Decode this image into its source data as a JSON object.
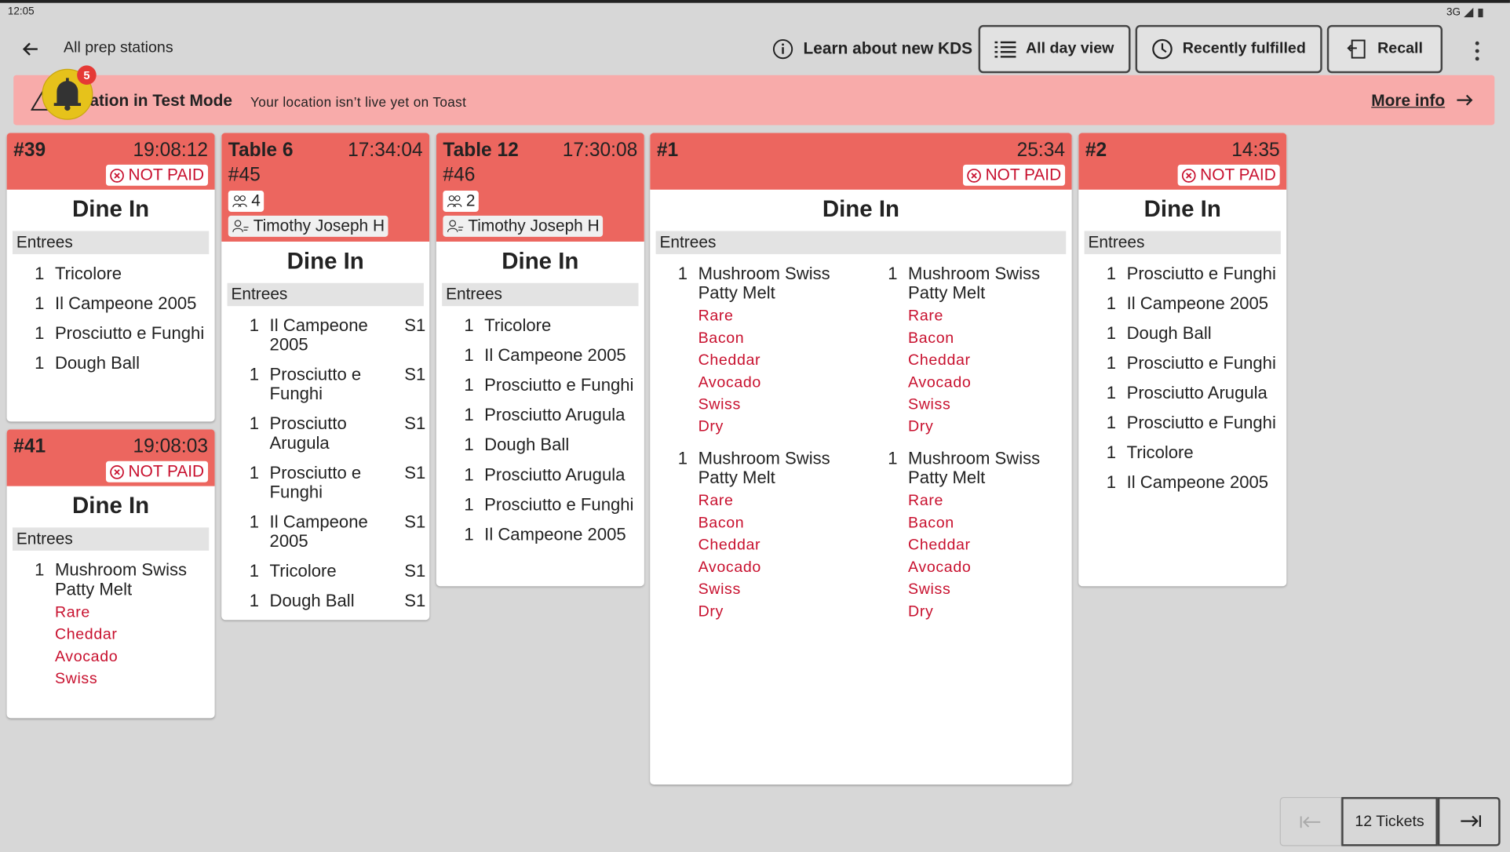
{
  "status_bar": {
    "time": "12:05",
    "network": "3G"
  },
  "header": {
    "title": "All prep stations",
    "buttons": [
      "Learn about new KDS",
      "All day view",
      "Recently fulfilled",
      "Recall"
    ]
  },
  "notification_count": "5",
  "banner": {
    "title": "Location in Test Mode",
    "message": "Your location isn’t live yet on Toast",
    "link": "More info"
  },
  "tickets": [
    {
      "name": "#39",
      "time": "19:08:12",
      "payment": "NOT PAID",
      "order_type": "Dine In",
      "section": "Entrees",
      "items": [
        {
          "qty": 1,
          "name": "Tricolore"
        },
        {
          "qty": 1,
          "name": "Il Campeone 2005"
        },
        {
          "qty": 1,
          "name": "Prosciutto e Funghi"
        },
        {
          "qty": 1,
          "name": "Dough Ball"
        }
      ]
    },
    {
      "name": "#41",
      "time": "19:08:03",
      "payment": "NOT PAID",
      "order_type": "Dine In",
      "section": "Entrees",
      "items": [
        {
          "qty": 1,
          "name": "Mushroom Swiss Patty Melt",
          "modifiers": [
            "Rare",
            "Cheddar",
            "Avocado",
            "Swiss"
          ]
        }
      ]
    },
    {
      "name": "Table 6",
      "time": "17:34:04",
      "number": "#45",
      "guests": "4",
      "server": "Timothy Joseph H",
      "order_type": "Dine In",
      "section": "Entrees",
      "items": [
        {
          "qty": 1,
          "name": "Il Campeone 2005",
          "seat": "S1"
        },
        {
          "qty": 1,
          "name": "Prosciutto e Funghi",
          "seat": "S1"
        },
        {
          "qty": 1,
          "name": "Prosciutto Arugula",
          "seat": "S1"
        },
        {
          "qty": 1,
          "name": "Prosciutto e Funghi",
          "seat": "S1"
        },
        {
          "qty": 1,
          "name": "Il Campeone 2005",
          "seat": "S1"
        },
        {
          "qty": 1,
          "name": "Tricolore",
          "seat": "S1"
        },
        {
          "qty": 1,
          "name": "Dough Ball",
          "seat": "S1"
        }
      ]
    },
    {
      "name": "Table 12",
      "time": "17:30:08",
      "number": "#46",
      "guests": "2",
      "server": "Timothy Joseph H",
      "order_type": "Dine In",
      "section": "Entrees",
      "items": [
        {
          "qty": 1,
          "name": "Tricolore"
        },
        {
          "qty": 1,
          "name": "Il Campeone 2005"
        },
        {
          "qty": 1,
          "name": "Prosciutto e Funghi"
        },
        {
          "qty": 1,
          "name": "Prosciutto Arugula"
        },
        {
          "qty": 1,
          "name": "Dough Ball"
        },
        {
          "qty": 1,
          "name": "Prosciutto Arugula"
        },
        {
          "qty": 1,
          "name": "Prosciutto e Funghi"
        },
        {
          "qty": 1,
          "name": "Il Campeone 2005"
        }
      ]
    },
    {
      "name": "#1",
      "time": "25:34",
      "payment": "NOT PAID",
      "order_type": "Dine In",
      "section": "Entrees",
      "items": [
        {
          "qty": 1,
          "name": "Mushroom Swiss Patty Melt",
          "modifiers": [
            "Rare",
            "Bacon",
            "Cheddar",
            "Avocado",
            "Swiss",
            "Dry"
          ]
        },
        {
          "qty": 1,
          "name": "Mushroom Swiss Patty Melt",
          "modifiers": [
            "Rare",
            "Bacon",
            "Cheddar",
            "Avocado",
            "Swiss",
            "Dry"
          ]
        },
        {
          "qty": 1,
          "name": "Mushroom Swiss Patty Melt",
          "modifiers": [
            "Rare",
            "Bacon",
            "Cheddar",
            "Avocado",
            "Swiss",
            "Dry"
          ]
        },
        {
          "qty": 1,
          "name": "Mushroom Swiss Patty Melt",
          "modifiers": [
            "Rare",
            "Bacon",
            "Cheddar",
            "Avocado",
            "Swiss",
            "Dry"
          ]
        }
      ]
    },
    {
      "name": "#2",
      "time": "14:35",
      "payment": "NOT PAID",
      "order_type": "Dine In",
      "section": "Entrees",
      "items": [
        {
          "qty": 1,
          "name": "Prosciutto e Funghi"
        },
        {
          "qty": 1,
          "name": "Il Campeone 2005"
        },
        {
          "qty": 1,
          "name": "Dough Ball"
        },
        {
          "qty": 1,
          "name": "Prosciutto e Funghi"
        },
        {
          "qty": 1,
          "name": "Prosciutto Arugula"
        },
        {
          "qty": 1,
          "name": "Prosciutto e Funghi"
        },
        {
          "qty": 1,
          "name": "Tricolore"
        },
        {
          "qty": 1,
          "name": "Il Campeone 2005"
        }
      ]
    }
  ],
  "pagination": {
    "label": "12 Tickets"
  }
}
